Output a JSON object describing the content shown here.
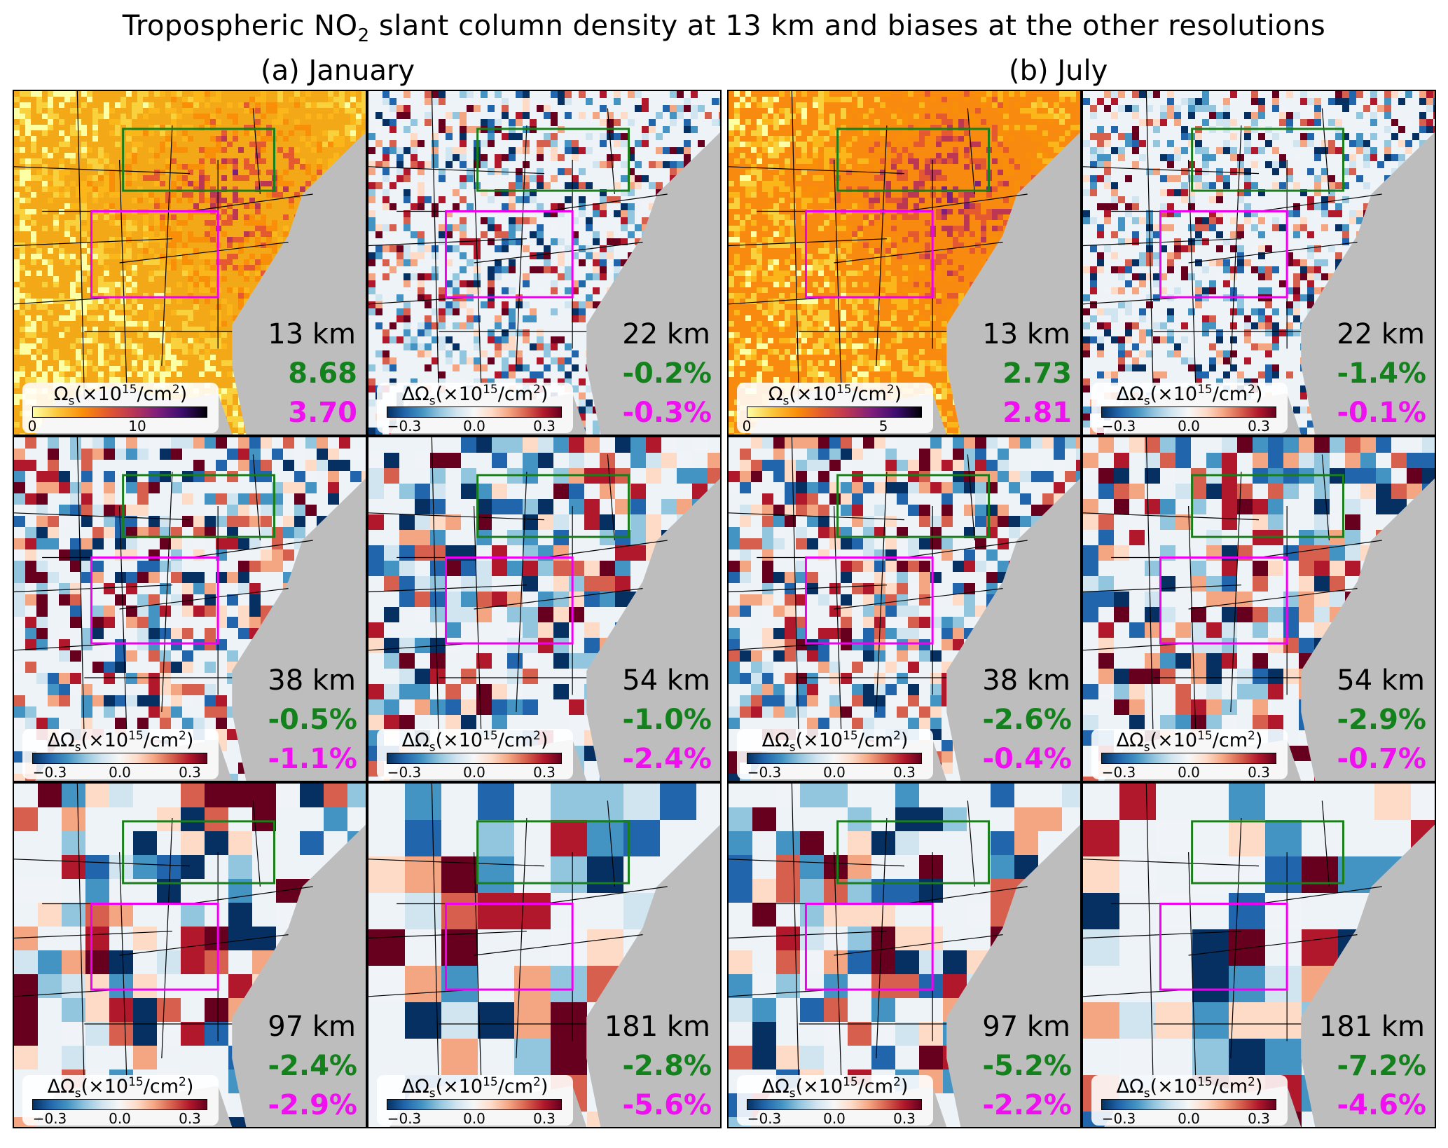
{
  "figure": {
    "title_main": "Tropospheric NO",
    "title_sub": "2",
    "title_rest": " slant column density at 13 km and biases at the other resolutions",
    "columns": [
      "(a) January",
      "(b) July"
    ]
  },
  "colorbar": {
    "abs_prefix": "Ω",
    "delta_prefix": "ΔΩ",
    "sub": "s",
    "mid": "(×10",
    "sup": "15",
    "unit": "/cm",
    "sup2": "2",
    "close": ")"
  },
  "panels": [
    {
      "column": "January",
      "res": "13 km",
      "green": "8.68",
      "magenta": "3.70",
      "cb": "abs",
      "ticks": [
        "0",
        "10"
      ]
    },
    {
      "column": "January",
      "res": "22 km",
      "green": "-0.2%",
      "magenta": "-0.3%",
      "cb": "delta",
      "ticks": [
        "−0.3",
        "0.0",
        "0.3"
      ]
    },
    {
      "column": "July",
      "res": "13 km",
      "green": "2.73",
      "magenta": "2.81",
      "cb": "abs",
      "ticks": [
        "0",
        "5"
      ]
    },
    {
      "column": "July",
      "res": "22 km",
      "green": "-1.4%",
      "magenta": "-0.1%",
      "cb": "delta",
      "ticks": [
        "−0.3",
        "0.0",
        "0.3"
      ]
    },
    {
      "column": "January",
      "res": "38 km",
      "green": "-0.5%",
      "magenta": "-1.1%",
      "cb": "delta",
      "ticks": [
        "−0.3",
        "0.0",
        "0.3"
      ]
    },
    {
      "column": "January",
      "res": "54 km",
      "green": "-1.0%",
      "magenta": "-2.4%",
      "cb": "delta",
      "ticks": [
        "−0.3",
        "0.0",
        "0.3"
      ]
    },
    {
      "column": "July",
      "res": "38 km",
      "green": "-2.6%",
      "magenta": "-0.4%",
      "cb": "delta",
      "ticks": [
        "−0.3",
        "0.0",
        "0.3"
      ]
    },
    {
      "column": "July",
      "res": "54 km",
      "green": "-2.9%",
      "magenta": "-0.7%",
      "cb": "delta",
      "ticks": [
        "−0.3",
        "0.0",
        "0.3"
      ]
    },
    {
      "column": "January",
      "res": "97 km",
      "green": "-2.4%",
      "magenta": "-2.9%",
      "cb": "delta",
      "ticks": [
        "−0.3",
        "0.0",
        "0.3"
      ]
    },
    {
      "column": "January",
      "res": "181 km",
      "green": "-2.8%",
      "magenta": "-5.6%",
      "cb": "delta",
      "ticks": [
        "−0.3",
        "0.0",
        "0.3"
      ]
    },
    {
      "column": "July",
      "res": "97 km",
      "green": "-5.2%",
      "magenta": "-2.2%",
      "cb": "delta",
      "ticks": [
        "−0.3",
        "0.0",
        "0.3"
      ]
    },
    {
      "column": "July",
      "res": "181 km",
      "green": "-7.2%",
      "magenta": "-4.6%",
      "cb": "delta",
      "ticks": [
        "−0.3",
        "0.0",
        "0.3"
      ]
    }
  ],
  "colors": {
    "green_box": "#1a7f1a",
    "magenta_box": "#f000f0",
    "ocean": "#bdbdbd",
    "land_abs_jan": "#f3a818",
    "land_abs_jul": "#f88a10",
    "land_delta": "#eef3f8"
  }
}
